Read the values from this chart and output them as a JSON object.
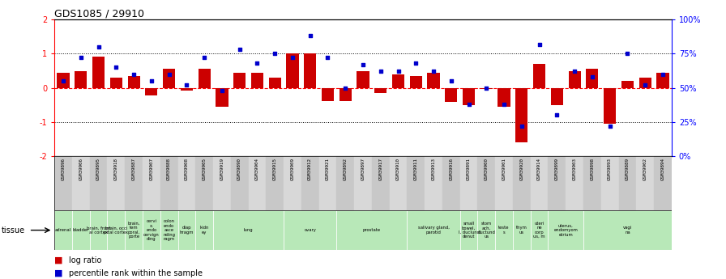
{
  "title": "GDS1085 / 29910",
  "samples": [
    "GSM39896",
    "GSM39906",
    "GSM39895",
    "GSM39918",
    "GSM39887",
    "GSM39907",
    "GSM39888",
    "GSM39908",
    "GSM39905",
    "GSM39919",
    "GSM39890",
    "GSM39904",
    "GSM39915",
    "GSM39909",
    "GSM39912",
    "GSM39921",
    "GSM39892",
    "GSM39897",
    "GSM39917",
    "GSM39910",
    "GSM39911",
    "GSM39913",
    "GSM39916",
    "GSM39891",
    "GSM39900",
    "GSM39901",
    "GSM39920",
    "GSM39914",
    "GSM39899",
    "GSM39903",
    "GSM39898",
    "GSM39893",
    "GSM39889",
    "GSM39902",
    "GSM39894"
  ],
  "log_ratio": [
    0.45,
    0.5,
    0.92,
    0.3,
    0.35,
    -0.22,
    0.55,
    -0.08,
    0.55,
    -0.55,
    0.45,
    0.45,
    0.3,
    1.0,
    1.0,
    -0.38,
    -0.38,
    0.5,
    -0.15,
    0.4,
    0.35,
    0.45,
    -0.4,
    -0.5,
    -0.02,
    -0.55,
    -1.6,
    0.7,
    -0.5,
    0.5,
    0.55,
    -1.05,
    0.2,
    0.3,
    0.45
  ],
  "percentile": [
    55,
    72,
    80,
    65,
    60,
    55,
    60,
    52,
    72,
    48,
    78,
    68,
    75,
    72,
    88,
    72,
    50,
    67,
    62,
    62,
    68,
    62,
    55,
    38,
    50,
    38,
    22,
    82,
    30,
    62,
    58,
    22,
    75,
    52,
    60
  ],
  "tissue_groups": [
    {
      "label": "adrenal",
      "start": 0,
      "end": 1
    },
    {
      "label": "bladder",
      "start": 1,
      "end": 2
    },
    {
      "label": "brain, front\nal cortex",
      "start": 2,
      "end": 3
    },
    {
      "label": "brain, occi\npital cortex",
      "start": 3,
      "end": 4
    },
    {
      "label": "brain,\ntem\nporal,\nporte",
      "start": 4,
      "end": 5
    },
    {
      "label": "cervi\nx,\nendo\ncervign\nding",
      "start": 5,
      "end": 6
    },
    {
      "label": "colon\nendo\nasce\nnding\nragm",
      "start": 6,
      "end": 7
    },
    {
      "label": "diap\nhragm",
      "start": 7,
      "end": 8
    },
    {
      "label": "kidn\ney",
      "start": 8,
      "end": 9
    },
    {
      "label": "lung",
      "start": 9,
      "end": 13
    },
    {
      "label": "ovary",
      "start": 13,
      "end": 16
    },
    {
      "label": "prostate",
      "start": 16,
      "end": 20
    },
    {
      "label": "salivary gland,\nparotid",
      "start": 20,
      "end": 23
    },
    {
      "label": "small\nbowel,\nI, duclund\ndenut",
      "start": 23,
      "end": 24
    },
    {
      "label": "stom\nach,\nductund\nus",
      "start": 24,
      "end": 25
    },
    {
      "label": "teste\ns",
      "start": 25,
      "end": 26
    },
    {
      "label": "thym\nus",
      "start": 26,
      "end": 27
    },
    {
      "label": "uteri\nne\ncorp\nus, m",
      "start": 27,
      "end": 28
    },
    {
      "label": "uterus,\nendomyom\netrium",
      "start": 28,
      "end": 30
    },
    {
      "label": "vagi\nna",
      "start": 30,
      "end": 35
    }
  ],
  "ylim_left": [
    -2,
    2
  ],
  "ylim_right": [
    0,
    100
  ],
  "bar_color": "#cc0000",
  "dot_color": "#0000cc",
  "bg_color": "#ffffff",
  "tissue_color": "#b8e8b8",
  "sample_bg_even": "#c8c8c8",
  "sample_bg_odd": "#d8d8d8"
}
